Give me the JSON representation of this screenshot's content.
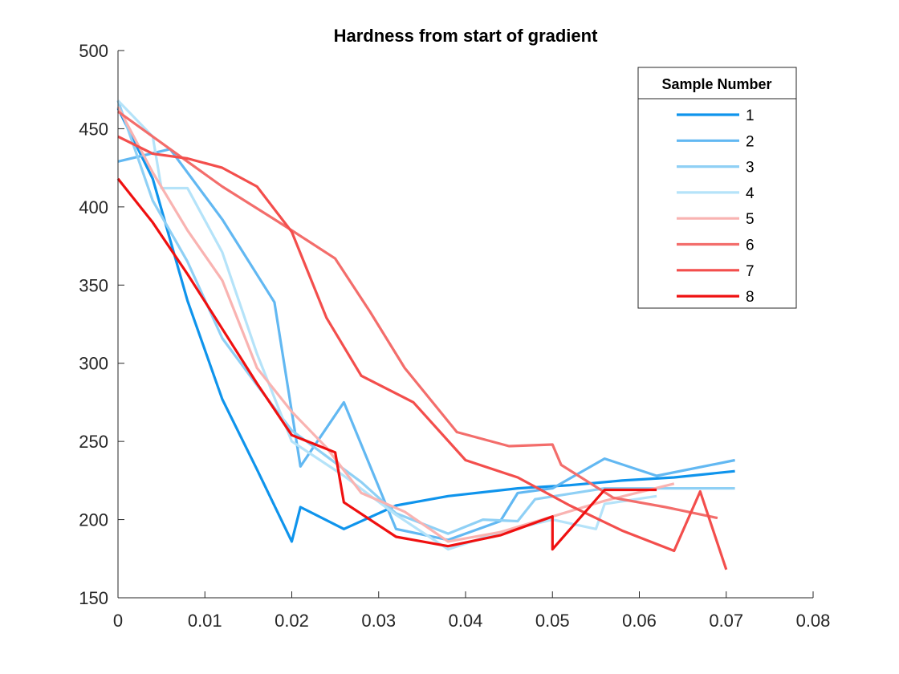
{
  "chart_data": {
    "type": "line",
    "title": "Hardness from start of gradient",
    "xlabel": "",
    "ylabel": "",
    "xlim": [
      0,
      0.08
    ],
    "ylim": [
      150,
      500
    ],
    "xticks": [
      0,
      0.01,
      0.02,
      0.03,
      0.04,
      0.05,
      0.06,
      0.07,
      0.08
    ],
    "xtick_labels": [
      "0",
      "0.01",
      "0.02",
      "0.03",
      "0.04",
      "0.05",
      "0.06",
      "0.07",
      "0.08"
    ],
    "yticks": [
      150,
      200,
      250,
      300,
      350,
      400,
      450,
      500
    ],
    "ytick_labels": [
      "150",
      "200",
      "250",
      "300",
      "350",
      "400",
      "450",
      "500"
    ],
    "grid": false,
    "legend": {
      "title": "Sample Number",
      "placement": "top-right"
    },
    "series": [
      {
        "name": "1",
        "color": "#0f94ec",
        "x": [
          0,
          0.004,
          0.008,
          0.012,
          0.016,
          0.02,
          0.021,
          0.026,
          0.032,
          0.038,
          0.046,
          0.052,
          0.058,
          0.064,
          0.071
        ],
        "y": [
          463,
          418,
          340,
          277,
          232,
          186,
          208,
          194,
          209,
          215,
          220,
          222,
          225,
          227,
          231
        ]
      },
      {
        "name": "2",
        "color": "#62b8f2",
        "x": [
          0,
          0.006,
          0.012,
          0.018,
          0.021,
          0.026,
          0.032,
          0.038,
          0.044,
          0.046,
          0.05,
          0.056,
          0.062,
          0.071
        ],
        "y": [
          429,
          437,
          392,
          339,
          234,
          275,
          194,
          187,
          199,
          217,
          220,
          239,
          228,
          238
        ]
      },
      {
        "name": "3",
        "color": "#8fd0f5",
        "x": [
          0,
          0.004,
          0.008,
          0.012,
          0.016,
          0.02,
          0.028,
          0.032,
          0.038,
          0.042,
          0.046,
          0.048,
          0.056,
          0.062,
          0.071
        ],
        "y": [
          468,
          404,
          365,
          316,
          286,
          257,
          224,
          204,
          191,
          200,
          199,
          213,
          220,
          220,
          220
        ]
      },
      {
        "name": "4",
        "color": "#b5e3f9",
        "x": [
          0,
          0.004,
          0.005,
          0.008,
          0.012,
          0.016,
          0.02,
          0.026,
          0.032,
          0.038,
          0.044,
          0.05,
          0.055,
          0.056,
          0.062
        ],
        "y": [
          468,
          445,
          412,
          412,
          371,
          306,
          250,
          228,
          203,
          181,
          192,
          200,
          194,
          210,
          215
        ]
      },
      {
        "name": "5",
        "color": "#f9b3b1",
        "x": [
          0,
          0.004,
          0.008,
          0.012,
          0.016,
          0.02,
          0.024,
          0.028,
          0.033,
          0.038,
          0.044,
          0.05,
          0.056,
          0.064
        ],
        "y": [
          464,
          422,
          385,
          353,
          297,
          269,
          246,
          217,
          205,
          186,
          192,
          202,
          212,
          223
        ]
      },
      {
        "name": "6",
        "color": "#f36d6b",
        "x": [
          0,
          0.006,
          0.012,
          0.018,
          0.02,
          0.025,
          0.029,
          0.033,
          0.039,
          0.045,
          0.05,
          0.051,
          0.057,
          0.063,
          0.069
        ],
        "y": [
          461,
          437,
          413,
          392,
          385,
          367,
          333,
          297,
          256,
          247,
          248,
          235,
          214,
          208,
          201
        ]
      },
      {
        "name": "7",
        "color": "#f34e4c",
        "x": [
          0,
          0.004,
          0.008,
          0.012,
          0.016,
          0.02,
          0.024,
          0.028,
          0.034,
          0.04,
          0.046,
          0.052,
          0.058,
          0.064,
          0.067,
          0.07
        ],
        "y": [
          445,
          434,
          431,
          425,
          413,
          384,
          329,
          292,
          275,
          238,
          227,
          209,
          193,
          180,
          218,
          168
        ]
      },
      {
        "name": "8",
        "color": "#ef1010",
        "x": [
          0,
          0.004,
          0.008,
          0.012,
          0.016,
          0.02,
          0.025,
          0.026,
          0.032,
          0.038,
          0.044,
          0.05,
          0.05,
          0.056,
          0.062
        ],
        "y": [
          418,
          390,
          357,
          322,
          287,
          254,
          243,
          211,
          189,
          183,
          190,
          202,
          181,
          219,
          219
        ]
      }
    ]
  }
}
